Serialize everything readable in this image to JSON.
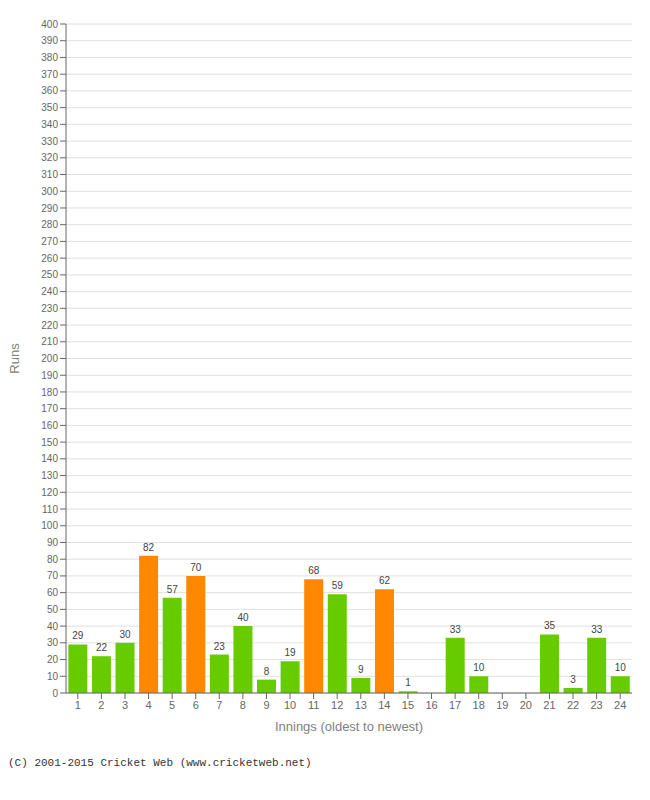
{
  "chart_data": {
    "type": "bar",
    "xlabel": "Innings (oldest to newest)",
    "ylabel": "Runs",
    "annotations": [
      "(C) 2001-2015 Cricket Web (www.cricketweb.net)"
    ],
    "categories": [
      "1",
      "2",
      "3",
      "4",
      "5",
      "6",
      "7",
      "8",
      "9",
      "10",
      "11",
      "12",
      "13",
      "14",
      "15",
      "16",
      "17",
      "18",
      "19",
      "20",
      "21",
      "22",
      "23",
      "24"
    ],
    "values": [
      29,
      22,
      30,
      82,
      57,
      70,
      23,
      40,
      8,
      19,
      68,
      59,
      9,
      62,
      1,
      0,
      33,
      10,
      0,
      0,
      35,
      3,
      33,
      10
    ],
    "colors": [
      "#66cc00",
      "#66cc00",
      "#66cc00",
      "#ff8800",
      "#66cc00",
      "#ff8800",
      "#66cc00",
      "#66cc00",
      "#66cc00",
      "#66cc00",
      "#ff8800",
      "#66cc00",
      "#66cc00",
      "#ff8800",
      "#66cc00",
      "#ff8800",
      "#66cc00",
      "#66cc00",
      "#ff8800",
      "#ff8800",
      "#66cc00",
      "#66cc00",
      "#66cc00",
      "#66cc00"
    ],
    "ylim": [
      0,
      400
    ],
    "yticks": [
      0,
      10,
      20,
      30,
      40,
      50,
      60,
      70,
      80,
      90,
      100,
      110,
      120,
      130,
      140,
      150,
      160,
      170,
      180,
      190,
      200,
      210,
      220,
      230,
      240,
      250,
      260,
      270,
      280,
      290,
      300,
      310,
      320,
      330,
      340,
      350,
      360,
      370,
      380,
      390,
      400
    ],
    "grid": true,
    "data_labels": true
  }
}
